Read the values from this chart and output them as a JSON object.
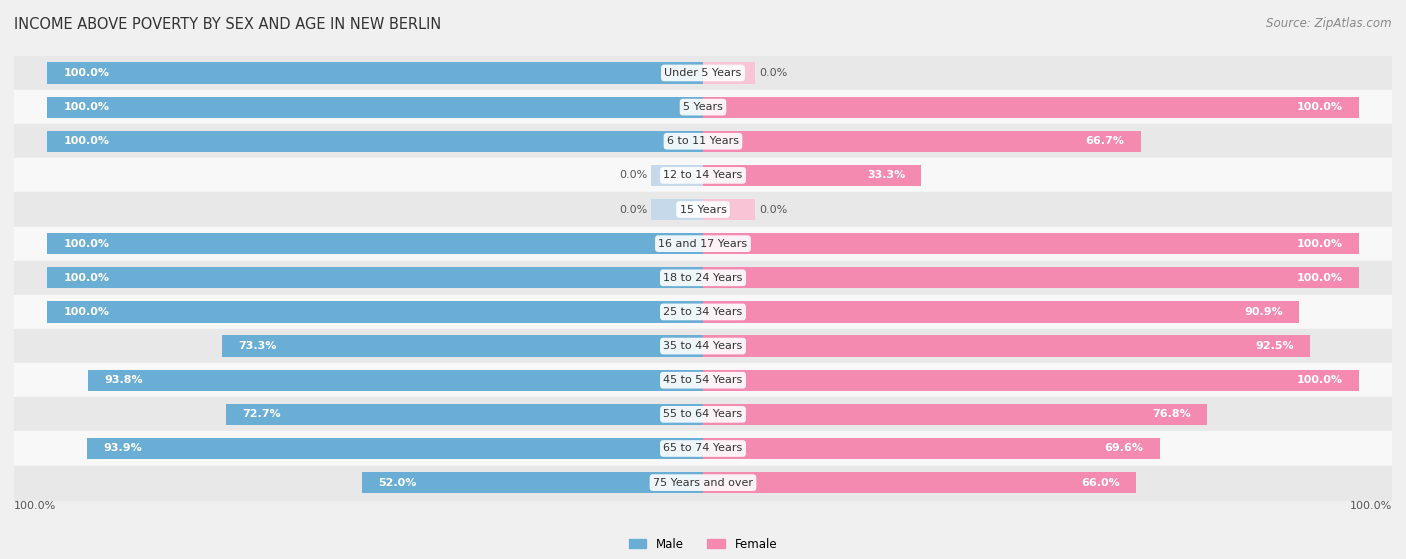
{
  "title": "INCOME ABOVE POVERTY BY SEX AND AGE IN NEW BERLIN",
  "source": "Source: ZipAtlas.com",
  "categories": [
    "Under 5 Years",
    "5 Years",
    "6 to 11 Years",
    "12 to 14 Years",
    "15 Years",
    "16 and 17 Years",
    "18 to 24 Years",
    "25 to 34 Years",
    "35 to 44 Years",
    "45 to 54 Years",
    "55 to 64 Years",
    "65 to 74 Years",
    "75 Years and over"
  ],
  "male": [
    100.0,
    100.0,
    100.0,
    0.0,
    0.0,
    100.0,
    100.0,
    100.0,
    73.3,
    93.8,
    72.7,
    93.9,
    52.0
  ],
  "female": [
    0.0,
    100.0,
    66.7,
    33.3,
    0.0,
    100.0,
    100.0,
    90.9,
    92.5,
    100.0,
    76.8,
    69.6,
    66.0
  ],
  "male_color": "#6aaed6",
  "female_color": "#f48ab0",
  "male_zero_color": "#c5d9ea",
  "female_zero_color": "#f9c4d5",
  "male_label": "Male",
  "female_label": "Female",
  "bg_color": "#f0f0f0",
  "row_colors": [
    "#e8e8e8",
    "#f8f8f8"
  ],
  "title_fontsize": 10.5,
  "source_fontsize": 8.5,
  "value_fontsize": 8.0,
  "label_fontsize": 8.0,
  "axis_label_fontsize": 8.0,
  "max_val": 100.0,
  "zero_placeholder": 8.0
}
